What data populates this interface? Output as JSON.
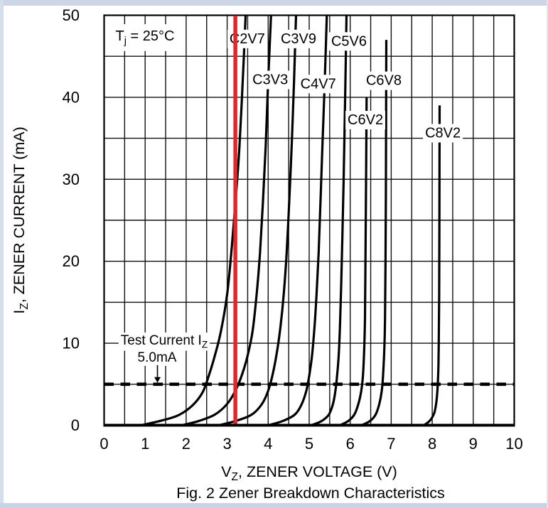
{
  "page": {
    "background": "#ffffff",
    "frame_top_color": "#ccd6e6",
    "frame_left_color": "#d5ddea",
    "frame_bottom_color": "#c9d3e4",
    "frame_right_color": "#dfe5ef"
  },
  "chart_data": {
    "type": "line",
    "title": "Fig. 2  Zener Breakdown Characteristics",
    "xlabel": "V_{Z}, ZENER VOLTAGE (V)",
    "ylabel": "I_{Z}, ZENER CURRENT (mA)",
    "xlim": [
      0,
      10
    ],
    "ylim": [
      0,
      50
    ],
    "x_ticks": [
      "0",
      "1",
      "2",
      "3",
      "4",
      "5",
      "6",
      "7",
      "8",
      "9",
      "10"
    ],
    "y_ticks": [
      "0",
      "10",
      "20",
      "30",
      "40",
      "50"
    ],
    "x_grid_step_v": 0.5,
    "y_grid_step_ma": 5,
    "grid": true,
    "legend_position": "none",
    "condition_label": "T_{j} = 25°C",
    "test_current_annotation": {
      "line1": "Test Current I_{Z}",
      "line2": "5.0mA",
      "level_ma": 5,
      "arrow_x_v": 1.3
    },
    "red_marker_voltage": 3.2,
    "colors": {
      "curve": "#000000",
      "grid": "#111111",
      "red_marker": "#e8232a",
      "label_bg": "#ffffff",
      "text": "#000000"
    },
    "series": [
      {
        "name": "C2V7",
        "label_v": 3.49,
        "label_i": 47.2,
        "points": [
          [
            0.9,
            0
          ],
          [
            1.35,
            0.5
          ],
          [
            1.8,
            1.2
          ],
          [
            2.15,
            2.4
          ],
          [
            2.4,
            4
          ],
          [
            2.55,
            6
          ],
          [
            2.7,
            8.5
          ],
          [
            2.85,
            11.5
          ],
          [
            3.0,
            16
          ],
          [
            3.1,
            21
          ],
          [
            3.2,
            27
          ],
          [
            3.3,
            34
          ],
          [
            3.38,
            42
          ],
          [
            3.45,
            50
          ]
        ]
      },
      {
        "name": "C3V3",
        "label_v": 4.05,
        "label_i": 42.2,
        "points": [
          [
            1.9,
            0
          ],
          [
            2.3,
            0.5
          ],
          [
            2.7,
            1.3
          ],
          [
            3.0,
            2.6
          ],
          [
            3.2,
            4.2
          ],
          [
            3.35,
            6
          ],
          [
            3.5,
            8.5
          ],
          [
            3.62,
            11.5
          ],
          [
            3.72,
            16
          ],
          [
            3.8,
            21
          ],
          [
            3.87,
            27
          ],
          [
            3.94,
            34
          ],
          [
            4.0,
            42
          ],
          [
            4.07,
            50
          ]
        ]
      },
      {
        "name": "C3V9",
        "label_v": 4.74,
        "label_i": 47.2,
        "points": [
          [
            2.8,
            0
          ],
          [
            3.2,
            0.5
          ],
          [
            3.6,
            1.3
          ],
          [
            3.85,
            2.6
          ],
          [
            4.0,
            4.2
          ],
          [
            4.1,
            6
          ],
          [
            4.2,
            8.5
          ],
          [
            4.3,
            12
          ],
          [
            4.38,
            16
          ],
          [
            4.45,
            21
          ],
          [
            4.52,
            28
          ],
          [
            4.58,
            35
          ],
          [
            4.63,
            42
          ],
          [
            4.68,
            50
          ]
        ]
      },
      {
        "name": "C4V7",
        "label_v": 5.22,
        "label_i": 41.7,
        "points": [
          [
            4.0,
            0
          ],
          [
            4.35,
            0.5
          ],
          [
            4.65,
            1.3
          ],
          [
            4.82,
            2.6
          ],
          [
            4.93,
            4.2
          ],
          [
            5.0,
            6
          ],
          [
            5.07,
            8.5
          ],
          [
            5.13,
            12
          ],
          [
            5.18,
            16
          ],
          [
            5.23,
            21
          ],
          [
            5.28,
            28
          ],
          [
            5.33,
            35
          ],
          [
            5.38,
            42
          ],
          [
            5.43,
            50
          ]
        ]
      },
      {
        "name": "C5V6",
        "label_v": 5.97,
        "label_i": 46.9,
        "points": [
          [
            5.05,
            0
          ],
          [
            5.3,
            0.5
          ],
          [
            5.48,
            1.3
          ],
          [
            5.58,
            2.6
          ],
          [
            5.64,
            4.2
          ],
          [
            5.68,
            6
          ],
          [
            5.72,
            8.5
          ],
          [
            5.75,
            12
          ],
          [
            5.78,
            17
          ],
          [
            5.81,
            23
          ],
          [
            5.84,
            30
          ],
          [
            5.87,
            38
          ],
          [
            5.91,
            50
          ]
        ]
      },
      {
        "name": "C6V2",
        "label_v": 6.37,
        "label_i": 37.3,
        "points": [
          [
            5.75,
            0
          ],
          [
            5.95,
            0.5
          ],
          [
            6.1,
            1.3
          ],
          [
            6.2,
            2.6
          ],
          [
            6.27,
            4.2
          ],
          [
            6.31,
            6
          ],
          [
            6.34,
            9
          ],
          [
            6.36,
            13
          ],
          [
            6.37,
            18
          ],
          [
            6.38,
            25
          ],
          [
            6.39,
            32
          ],
          [
            6.4,
            40
          ]
        ]
      },
      {
        "name": "C6V8",
        "label_v": 6.82,
        "label_i": 42.1,
        "points": [
          [
            6.28,
            0
          ],
          [
            6.48,
            0.5
          ],
          [
            6.62,
            1.3
          ],
          [
            6.71,
            2.6
          ],
          [
            6.77,
            4.2
          ],
          [
            6.8,
            6
          ],
          [
            6.83,
            9
          ],
          [
            6.85,
            13
          ],
          [
            6.86,
            19
          ],
          [
            6.87,
            28
          ],
          [
            6.88,
            47
          ]
        ]
      },
      {
        "name": "C8V2",
        "label_v": 8.26,
        "label_i": 35.7,
        "points": [
          [
            7.8,
            0
          ],
          [
            7.95,
            0.6
          ],
          [
            8.05,
            1.5
          ],
          [
            8.1,
            2.8
          ],
          [
            8.13,
            4.5
          ],
          [
            8.15,
            7
          ],
          [
            8.16,
            10
          ],
          [
            8.17,
            16
          ],
          [
            8.175,
            25
          ],
          [
            8.18,
            39
          ]
        ]
      }
    ]
  }
}
